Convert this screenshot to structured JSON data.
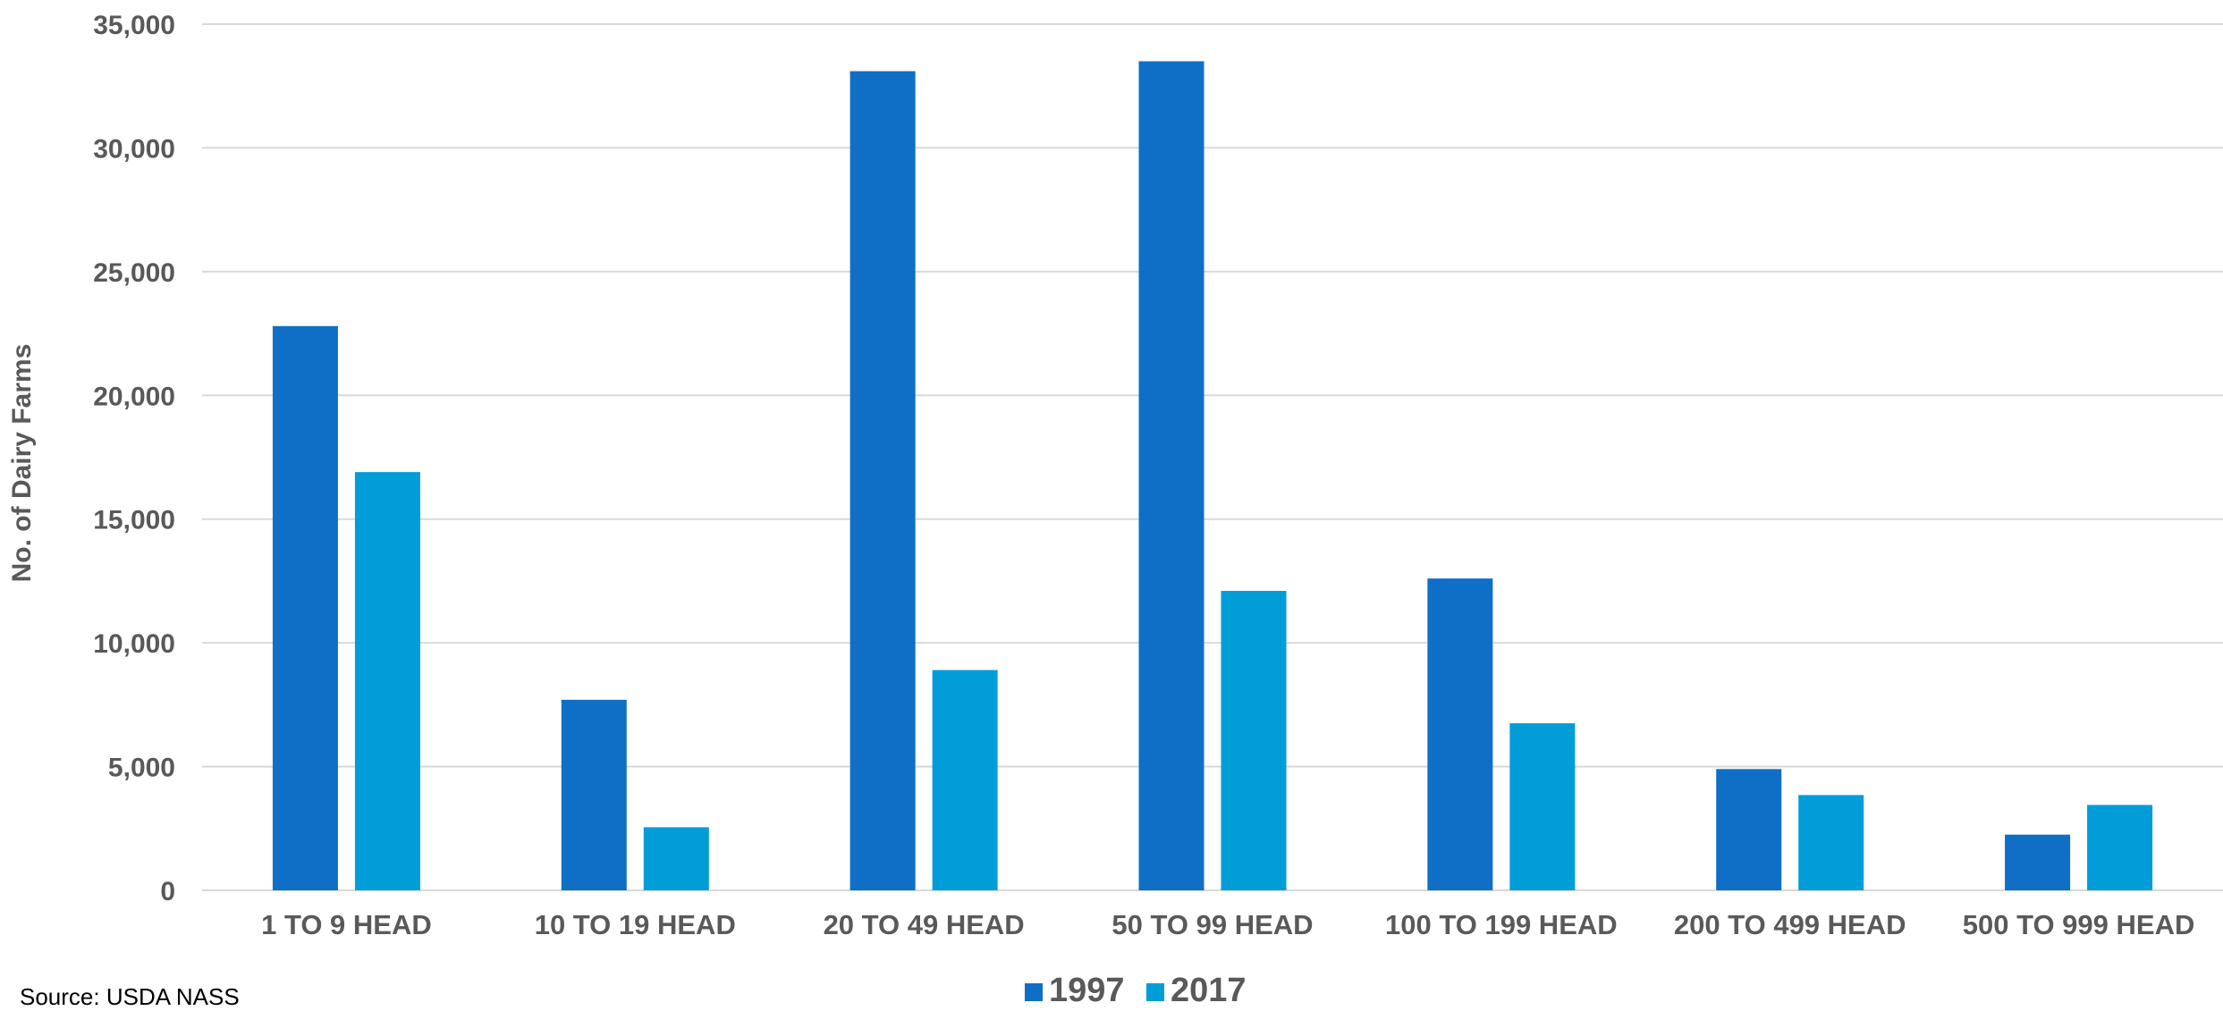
{
  "source_note": "Source: USDA NASS",
  "colors": {
    "series_1997": "#0F6FC6",
    "series_2017": "#009DD9",
    "grid": "#D9D9D9",
    "text": "#595959"
  },
  "chart_data": {
    "type": "bar",
    "title": "",
    "xlabel": "",
    "ylabel": "No. of Dairy Farms",
    "ylim": [
      0,
      35000
    ],
    "yticks": [
      0,
      5000,
      10000,
      15000,
      20000,
      25000,
      30000,
      35000
    ],
    "ytick_labels": [
      "0",
      "5,000",
      "10,000",
      "15,000",
      "20,000",
      "25,000",
      "30,000",
      "35,000"
    ],
    "grid": true,
    "legend_position": "bottom",
    "categories": [
      "1 TO 9 HEAD",
      "10 TO 19 HEAD",
      "20 TO 49 HEAD",
      "50 TO 99 HEAD",
      "100 TO 199 HEAD",
      "200 TO 499 HEAD",
      "500 TO 999 HEAD"
    ],
    "series": [
      {
        "name": "1997",
        "values": [
          22800,
          7700,
          33100,
          33500,
          12600,
          4900,
          2250
        ]
      },
      {
        "name": "2017",
        "values": [
          16900,
          2550,
          8900,
          12100,
          6750,
          3850,
          3450
        ]
      }
    ]
  }
}
